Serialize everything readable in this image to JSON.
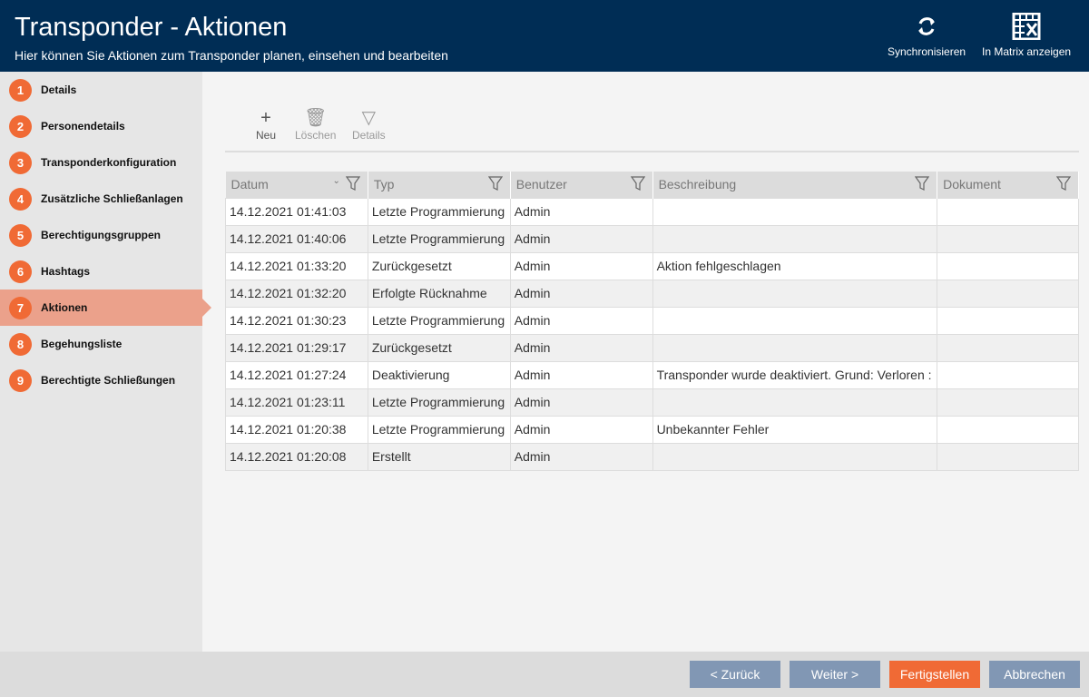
{
  "header": {
    "title": "Transponder - Aktionen",
    "subtitle": "Hier können Sie Aktionen zum Transponder planen, einsehen und bearbeiten",
    "sync": "Synchronisieren",
    "matrix": "In Matrix anzeigen"
  },
  "steps": [
    {
      "n": "1",
      "label": "Details"
    },
    {
      "n": "2",
      "label": "Personendetails"
    },
    {
      "n": "3",
      "label": "Transponderkonfiguration"
    },
    {
      "n": "4",
      "label": "Zusätzliche Schließanlagen"
    },
    {
      "n": "5",
      "label": "Berechtigungsgruppen"
    },
    {
      "n": "6",
      "label": "Hashtags"
    },
    {
      "n": "7",
      "label": "Aktionen"
    },
    {
      "n": "8",
      "label": "Begehungsliste"
    },
    {
      "n": "9",
      "label": "Berechtigte Schließungen"
    }
  ],
  "active_step": "7",
  "toolbar": {
    "new": "Neu",
    "delete": "Löschen",
    "details": "Details"
  },
  "table": {
    "columns": [
      "Datum",
      "Typ",
      "Benutzer",
      "Beschreibung",
      "Dokument"
    ],
    "rows": [
      [
        "14.12.2021 01:41:03",
        "Letzte Programmierung",
        "Admin",
        "",
        ""
      ],
      [
        "14.12.2021 01:40:06",
        "Letzte Programmierung",
        "Admin",
        "",
        ""
      ],
      [
        "14.12.2021 01:33:20",
        "Zurückgesetzt",
        "Admin",
        "Aktion fehlgeschlagen",
        ""
      ],
      [
        "14.12.2021 01:32:20",
        "Erfolgte Rücknahme",
        "Admin",
        "",
        ""
      ],
      [
        "14.12.2021 01:30:23",
        "Letzte Programmierung",
        "Admin",
        "",
        ""
      ],
      [
        "14.12.2021 01:29:17",
        "Zurückgesetzt",
        "Admin",
        "",
        ""
      ],
      [
        "14.12.2021 01:27:24",
        "Deaktivierung",
        "Admin",
        "Transponder wurde deaktiviert. Grund: Verloren :",
        ""
      ],
      [
        "14.12.2021 01:23:11",
        "Letzte Programmierung",
        "Admin",
        "",
        ""
      ],
      [
        "14.12.2021 01:20:38",
        "Letzte Programmierung",
        "Admin",
        "Unbekannter Fehler",
        ""
      ],
      [
        "14.12.2021 01:20:08",
        "Erstellt",
        "Admin",
        "",
        ""
      ]
    ]
  },
  "footer": {
    "back": "< Zurück",
    "next": "Weiter >",
    "finish": "Fertigstellen",
    "cancel": "Abbrechen"
  }
}
